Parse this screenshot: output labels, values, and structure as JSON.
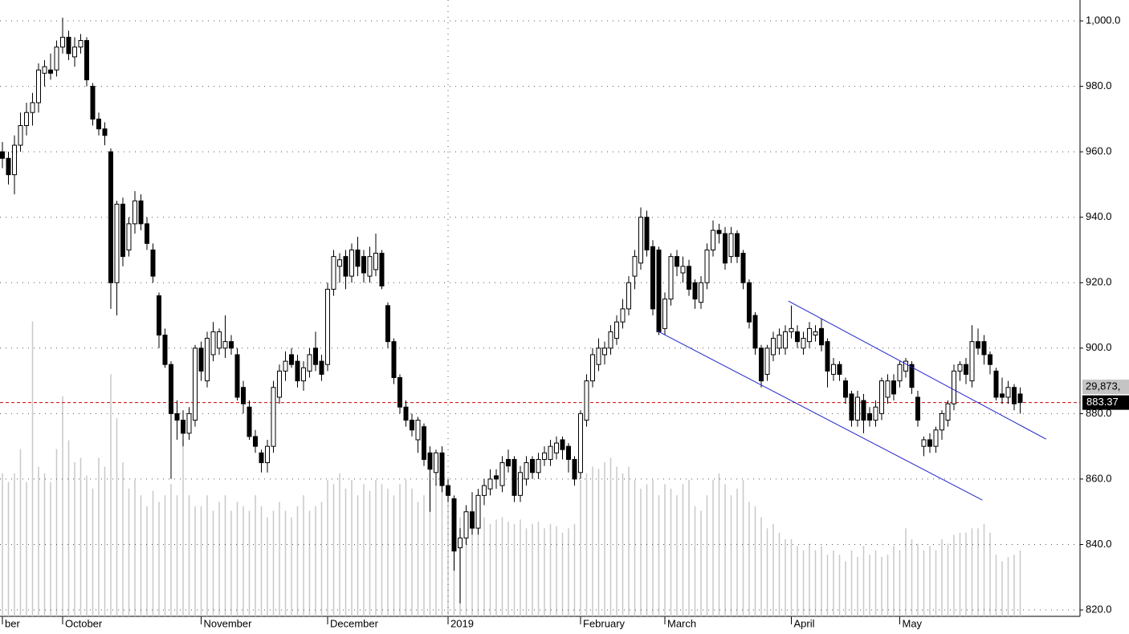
{
  "chart_data": {
    "type": "candlestick",
    "categories": [
      "ber",
      null,
      null,
      null,
      null,
      null,
      null,
      null,
      null,
      null,
      "October",
      null,
      null,
      null,
      null,
      null,
      null,
      null,
      null,
      null,
      null,
      null,
      null,
      null,
      null,
      null,
      null,
      null,
      null,
      null,
      null,
      null,
      null,
      "November",
      null,
      null,
      null,
      null,
      null,
      null,
      null,
      null,
      null,
      null,
      null,
      null,
      null,
      null,
      null,
      null,
      null,
      null,
      null,
      null,
      "December",
      null,
      null,
      null,
      null,
      null,
      null,
      null,
      null,
      null,
      null,
      null,
      null,
      null,
      null,
      null,
      null,
      null,
      null,
      null,
      "2019",
      null,
      null,
      null,
      null,
      null,
      null,
      null,
      null,
      null,
      null,
      null,
      null,
      null,
      null,
      null,
      null,
      null,
      null,
      null,
      null,
      null,
      "February",
      null,
      null,
      null,
      null,
      null,
      null,
      null,
      null,
      null,
      null,
      null,
      null,
      null,
      "March",
      null,
      null,
      null,
      null,
      null,
      null,
      null,
      null,
      null,
      null,
      null,
      null,
      null,
      null,
      null,
      null,
      null,
      null,
      null,
      null,
      "April",
      null,
      null,
      null,
      null,
      null,
      null,
      null,
      null,
      null,
      null,
      null,
      null,
      null,
      null,
      null,
      null,
      null,
      "May",
      null,
      null,
      null,
      null,
      null,
      null,
      null,
      null,
      null,
      null,
      null,
      null,
      null,
      null,
      null,
      null,
      null,
      null,
      null,
      null
    ],
    "ohlc": [
      [
        960,
        963,
        955,
        958
      ],
      [
        958,
        960,
        950,
        953
      ],
      [
        953,
        965,
        947,
        962
      ],
      [
        962,
        972,
        960,
        968
      ],
      [
        968,
        975,
        965,
        972
      ],
      [
        972,
        978,
        968,
        975
      ],
      [
        975,
        987,
        972,
        985
      ],
      [
        984,
        988,
        980,
        986
      ],
      [
        985,
        990,
        982,
        984
      ],
      [
        985,
        994,
        983,
        992
      ],
      [
        992,
        1001,
        990,
        995
      ],
      [
        995,
        997,
        988,
        990
      ],
      [
        989,
        995,
        986,
        992
      ],
      [
        992,
        996,
        990,
        994
      ],
      [
        994,
        995,
        980,
        982
      ],
      [
        980,
        981,
        968,
        970
      ],
      [
        970,
        972,
        965,
        967
      ],
      [
        967,
        969,
        962,
        965
      ],
      [
        960,
        961,
        912,
        920
      ],
      [
        920,
        945,
        910,
        944
      ],
      [
        944,
        946,
        925,
        928
      ],
      [
        930,
        940,
        928,
        938
      ],
      [
        938,
        948,
        935,
        945
      ],
      [
        945,
        947,
        936,
        938
      ],
      [
        938,
        940,
        930,
        932
      ],
      [
        930,
        932,
        920,
        922
      ],
      [
        916,
        917,
        900,
        904
      ],
      [
        904,
        906,
        894,
        895
      ],
      [
        895,
        896,
        860,
        880
      ],
      [
        880,
        884,
        872,
        878
      ],
      [
        878,
        881,
        870,
        874
      ],
      [
        874,
        882,
        872,
        880
      ],
      [
        878,
        901,
        876,
        900
      ],
      [
        900,
        902,
        890,
        893
      ],
      [
        890,
        905,
        888,
        903
      ],
      [
        898,
        908,
        896,
        905
      ],
      [
        900,
        906,
        898,
        905
      ],
      [
        900,
        910,
        897,
        902
      ],
      [
        902,
        904,
        898,
        900
      ],
      [
        898,
        900,
        884,
        885
      ],
      [
        888,
        890,
        880,
        883
      ],
      [
        882,
        884,
        872,
        873
      ],
      [
        873,
        875,
        868,
        870
      ],
      [
        868,
        869,
        862,
        865
      ],
      [
        865,
        872,
        862,
        870
      ],
      [
        870,
        890,
        868,
        888
      ],
      [
        885,
        895,
        883,
        893
      ],
      [
        893,
        899,
        890,
        896
      ],
      [
        898,
        900,
        894,
        895
      ],
      [
        896,
        898,
        888,
        890
      ],
      [
        890,
        896,
        887,
        894
      ],
      [
        893,
        900,
        891,
        898
      ],
      [
        900,
        905,
        893,
        895
      ],
      [
        896,
        898,
        890,
        892
      ],
      [
        895,
        920,
        893,
        918
      ],
      [
        918,
        930,
        916,
        928
      ],
      [
        925,
        929,
        920,
        927
      ],
      [
        928,
        930,
        918,
        922
      ],
      [
        922,
        932,
        920,
        930
      ],
      [
        930,
        934,
        922,
        925
      ],
      [
        928,
        930,
        920,
        923
      ],
      [
        922,
        931,
        920,
        928
      ],
      [
        924,
        935,
        922,
        929
      ],
      [
        929,
        930,
        918,
        919
      ],
      [
        913,
        914,
        900,
        902
      ],
      [
        902,
        903,
        889,
        891
      ],
      [
        891,
        892,
        880,
        882
      ],
      [
        882,
        884,
        876,
        878
      ],
      [
        878,
        880,
        873,
        875
      ],
      [
        872,
        879,
        868,
        878
      ],
      [
        876,
        877,
        864,
        866
      ],
      [
        868,
        870,
        850,
        863
      ],
      [
        862,
        869,
        858,
        868
      ],
      [
        868,
        870,
        856,
        858
      ],
      [
        858,
        860,
        853,
        855
      ],
      [
        854,
        855,
        832,
        838
      ],
      [
        839,
        845,
        822,
        842
      ],
      [
        842,
        852,
        840,
        850
      ],
      [
        850,
        856,
        843,
        845
      ],
      [
        845,
        857,
        843,
        855
      ],
      [
        855,
        860,
        852,
        858
      ],
      [
        857,
        863,
        855,
        860
      ],
      [
        861,
        863,
        857,
        860
      ],
      [
        858,
        867,
        856,
        865
      ],
      [
        866,
        869,
        862,
        864
      ],
      [
        866,
        867,
        853,
        855
      ],
      [
        855,
        864,
        853,
        862
      ],
      [
        860,
        867,
        858,
        865
      ],
      [
        866,
        867,
        860,
        862
      ],
      [
        862,
        868,
        860,
        866
      ],
      [
        866,
        870,
        864,
        868
      ],
      [
        866,
        872,
        864,
        870
      ],
      [
        868,
        873,
        866,
        871
      ],
      [
        872,
        873,
        866,
        869
      ],
      [
        870,
        871,
        862,
        866
      ],
      [
        866,
        867,
        858,
        860
      ],
      [
        862,
        881,
        860,
        880
      ],
      [
        878,
        892,
        876,
        890
      ],
      [
        890,
        900,
        888,
        898
      ],
      [
        895,
        903,
        893,
        900
      ],
      [
        898,
        902,
        895,
        900
      ],
      [
        900,
        907,
        898,
        905
      ],
      [
        903,
        910,
        901,
        908
      ],
      [
        908,
        915,
        906,
        912
      ],
      [
        912,
        922,
        910,
        920
      ],
      [
        922,
        930,
        918,
        928
      ],
      [
        926,
        943,
        924,
        940
      ],
      [
        940,
        942,
        928,
        930
      ],
      [
        931,
        933,
        910,
        912
      ],
      [
        930,
        931,
        904,
        905
      ],
      [
        906,
        917,
        904,
        915
      ],
      [
        915,
        929,
        913,
        928
      ],
      [
        928,
        930,
        922,
        925
      ],
      [
        923,
        928,
        920,
        925
      ],
      [
        925,
        927,
        916,
        918
      ],
      [
        920,
        921,
        912,
        915
      ],
      [
        914,
        922,
        912,
        920
      ],
      [
        920,
        932,
        918,
        930
      ],
      [
        930,
        939,
        928,
        936
      ],
      [
        936,
        938,
        932,
        935
      ],
      [
        935,
        937,
        924,
        926
      ],
      [
        928,
        937,
        926,
        935
      ],
      [
        935,
        936,
        926,
        928
      ],
      [
        929,
        930,
        918,
        920
      ],
      [
        920,
        921,
        906,
        908
      ],
      [
        910,
        911,
        898,
        900
      ],
      [
        900,
        901,
        888,
        890
      ],
      [
        892,
        901,
        890,
        900
      ],
      [
        898,
        905,
        896,
        903
      ],
      [
        900,
        906,
        898,
        904
      ],
      [
        900,
        907,
        898,
        905
      ],
      [
        905,
        913,
        903,
        906
      ],
      [
        905,
        907,
        900,
        902
      ],
      [
        900,
        905,
        898,
        903
      ],
      [
        902,
        908,
        900,
        906
      ],
      [
        904,
        907,
        902,
        905
      ],
      [
        906,
        909,
        899,
        901
      ],
      [
        902,
        903,
        888,
        893
      ],
      [
        892,
        897,
        890,
        895
      ],
      [
        895,
        896,
        890,
        892
      ],
      [
        890,
        891,
        883,
        885
      ],
      [
        886,
        887,
        876,
        878
      ],
      [
        878,
        887,
        876,
        885
      ],
      [
        884,
        886,
        874,
        878
      ],
      [
        880,
        882,
        876,
        878
      ],
      [
        878,
        884,
        876,
        882
      ],
      [
        880,
        891,
        878,
        890
      ],
      [
        885,
        892,
        883,
        890
      ],
      [
        890,
        892,
        884,
        886
      ],
      [
        890,
        896,
        888,
        895
      ],
      [
        893,
        897,
        891,
        896
      ],
      [
        895,
        896,
        886,
        888
      ],
      [
        885,
        887,
        876,
        878
      ],
      [
        870,
        873,
        867,
        872
      ],
      [
        872,
        874,
        868,
        870
      ],
      [
        870,
        876,
        868,
        875
      ],
      [
        875,
        881,
        872,
        880
      ],
      [
        878,
        884,
        876,
        883
      ],
      [
        883,
        895,
        881,
        893
      ],
      [
        893,
        896,
        890,
        895
      ],
      [
        895,
        897,
        889,
        892
      ],
      [
        890,
        907,
        888,
        902
      ],
      [
        902,
        906,
        898,
        900
      ],
      [
        902,
        904,
        895,
        898
      ],
      [
        898,
        899,
        892,
        895
      ],
      [
        893,
        894,
        884,
        885
      ],
      [
        886,
        891,
        883,
        885
      ],
      [
        885,
        890,
        883,
        888
      ],
      [
        888,
        889,
        881,
        883
      ],
      [
        886,
        888,
        880,
        883.37
      ]
    ],
    "volume": [
      65000000,
      61000000,
      65000000,
      76000000,
      61000000,
      134000000,
      68000000,
      65000000,
      61000000,
      76000000,
      100000000,
      80000000,
      70000000,
      72000000,
      64000000,
      58000000,
      72000000,
      68000000,
      110000000,
      90000000,
      70000000,
      58000000,
      62000000,
      55000000,
      50000000,
      57000000,
      52000000,
      55000000,
      60000000,
      55000000,
      80000000,
      55000000,
      50000000,
      50000000,
      55000000,
      48000000,
      52000000,
      55000000,
      48000000,
      52000000,
      50000000,
      48000000,
      55000000,
      50000000,
      45000000,
      48000000,
      52000000,
      48000000,
      45000000,
      50000000,
      55000000,
      48000000,
      50000000,
      52000000,
      62000000,
      60000000,
      65000000,
      58000000,
      62000000,
      55000000,
      60000000,
      57000000,
      62000000,
      60000000,
      58000000,
      55000000,
      60000000,
      62000000,
      58000000,
      52000000,
      55000000,
      62000000,
      60000000,
      65000000,
      58000000,
      52000000,
      45000000,
      43000000,
      45000000,
      44000000,
      45000000,
      42000000,
      44000000,
      45000000,
      43000000,
      42000000,
      44000000,
      40000000,
      42000000,
      43000000,
      40000000,
      42000000,
      41000000,
      38000000,
      40000000,
      42000000,
      62000000,
      65000000,
      68000000,
      67000000,
      70000000,
      72000000,
      68000000,
      65000000,
      68000000,
      62000000,
      58000000,
      60000000,
      62000000,
      55000000,
      60000000,
      58000000,
      55000000,
      60000000,
      62000000,
      50000000,
      48000000,
      55000000,
      62000000,
      65000000,
      60000000,
      55000000,
      58000000,
      62000000,
      52000000,
      50000000,
      45000000,
      40000000,
      42000000,
      38000000,
      35000000,
      35000000,
      32000000,
      30000000,
      33000000,
      30000000,
      32000000,
      28000000,
      30000000,
      28000000,
      25000000,
      30000000,
      27000000,
      32000000,
      28000000,
      30000000,
      27000000,
      28000000,
      32000000,
      30000000,
      40000000,
      35000000,
      33000000,
      30000000,
      32000000,
      30000000,
      35000000,
      33000000,
      37000000,
      38000000,
      38000000,
      40000000,
      40000000,
      42000000,
      38000000,
      28000000,
      25000000,
      27000000,
      28000000,
      29873000
    ],
    "up_color": "#ffffff",
    "down_color": "#000000",
    "volume_color": "#c8c8c8",
    "ylim": [
      818.05,
      1006.38
    ],
    "yticks": [
      {
        "value": 820,
        "label": "820.0"
      },
      {
        "value": 840,
        "label": "840.0"
      },
      {
        "value": 860,
        "label": "860.0"
      },
      {
        "value": 880,
        "label": "880.0"
      },
      {
        "value": 900,
        "label": "900.0"
      },
      {
        "value": 920,
        "label": "920.0"
      },
      {
        "value": 940,
        "label": "940.0"
      },
      {
        "value": 960,
        "label": "960.0"
      },
      {
        "value": 980,
        "label": "980.0"
      },
      {
        "value": 1000,
        "label": "1,000.0"
      }
    ],
    "vlim": [
      0,
      280000000
    ],
    "grid": true,
    "last_price": 883.37,
    "last_price_line_color": "#cc0000",
    "last_volume_label": "29,873,",
    "trendlines": [
      {
        "color": "#2222cc",
        "x": [
          130.5,
          173.3
        ],
        "y": [
          914.4,
          872.2
        ]
      },
      {
        "color": "#2222cc",
        "x": [
          108.7,
          162.7
        ],
        "y": [
          905.3,
          853.6
        ]
      }
    ]
  }
}
